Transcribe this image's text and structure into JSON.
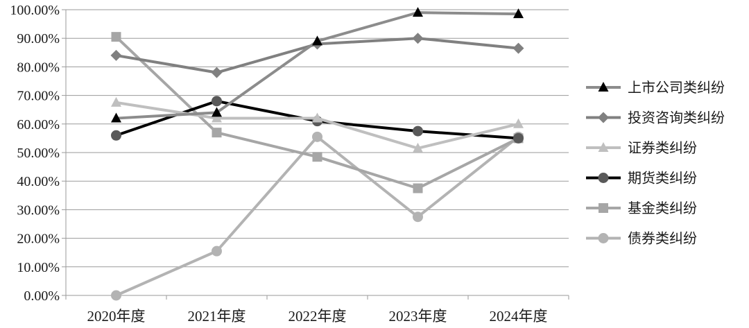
{
  "chart_data": {
    "type": "line",
    "categories": [
      "2020年度",
      "2021年度",
      "2022年度",
      "2023年度",
      "2024年度"
    ],
    "ylim": [
      0,
      100
    ],
    "yticks": [
      "0.00%",
      "10.00%",
      "20.00%",
      "30.00%",
      "40.00%",
      "50.00%",
      "60.00%",
      "70.00%",
      "80.00%",
      "90.00%",
      "100.00%"
    ],
    "grid": true,
    "legend_position": "right",
    "title": "",
    "xlabel": "",
    "ylabel": "",
    "series": [
      {
        "name": "上市公司类纠纷",
        "marker": "triangle",
        "color": "#8c8c8c",
        "marker_color": "#000000",
        "line_width": 4,
        "values": [
          62.0,
          64.0,
          89.0,
          99.0,
          98.5
        ]
      },
      {
        "name": "投资咨询类纠纷",
        "marker": "diamond",
        "color": "#808080",
        "marker_color": "#808080",
        "line_width": 4,
        "values": [
          84.0,
          78.0,
          88.0,
          90.0,
          86.5
        ]
      },
      {
        "name": "证券类纠纷",
        "marker": "triangle",
        "color": "#bfbfbf",
        "marker_color": "#bfbfbf",
        "line_width": 4,
        "values": [
          67.5,
          62.0,
          62.0,
          51.5,
          60.0
        ]
      },
      {
        "name": "期货类纠纷",
        "marker": "circle",
        "color": "#000000",
        "marker_color": "#595959",
        "line_width": 4,
        "values": [
          56.0,
          68.0,
          61.0,
          57.5,
          55.0
        ]
      },
      {
        "name": "基金类纠纷",
        "marker": "square",
        "color": "#a6a6a6",
        "marker_color": "#a6a6a6",
        "line_width": 4,
        "values": [
          90.5,
          57.0,
          48.5,
          37.5,
          55.0
        ]
      },
      {
        "name": "债券类纠纷",
        "marker": "circle",
        "color": "#b3b3b3",
        "marker_color": "#b3b3b3",
        "line_width": 4,
        "values": [
          0.0,
          15.5,
          55.5,
          27.5,
          55.5
        ]
      }
    ]
  }
}
